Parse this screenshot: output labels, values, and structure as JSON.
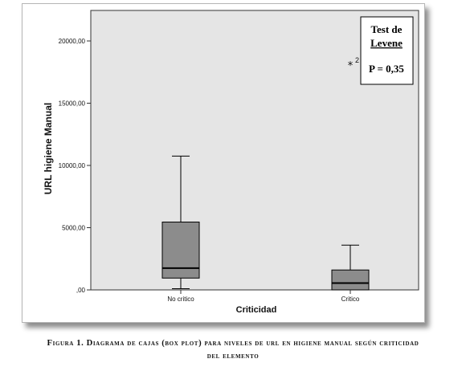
{
  "chart_data": {
    "type": "box",
    "ylabel": "URL higiene Manual",
    "xlabel": "Criticidad",
    "categories": [
      "No critico",
      "Critico"
    ],
    "yticks": [
      ",00",
      "5000,00",
      "10000,00",
      "15000,00",
      "20000,00"
    ],
    "ytick_values": [
      0,
      5000,
      10000,
      15000,
      20000
    ],
    "ylim": [
      0,
      22000
    ],
    "boxes": [
      {
        "category": "No critico",
        "min": 100,
        "q1": 950,
        "median": 1750,
        "q3": 5450,
        "max": 10750
      },
      {
        "category": "Critico",
        "min": 0,
        "q1": 0,
        "median": 550,
        "q3": 1600,
        "max": 3600
      }
    ],
    "outliers": [
      {
        "category": "Critico",
        "value": 18200,
        "marker": "*",
        "label": "2"
      }
    ],
    "annotation": {
      "title_line1": "Test de",
      "title_line2": "Levene",
      "value": "P = 0,35"
    },
    "colors": {
      "plot_background": "#e5e5e5",
      "box_fill": "#8c8c8c",
      "median": "#000000"
    }
  },
  "caption": {
    "line1": "Figura 1. Diagrama de cajas (box plot) para niveles de url en higiene manual según criticidad",
    "line2": "del elemento"
  }
}
